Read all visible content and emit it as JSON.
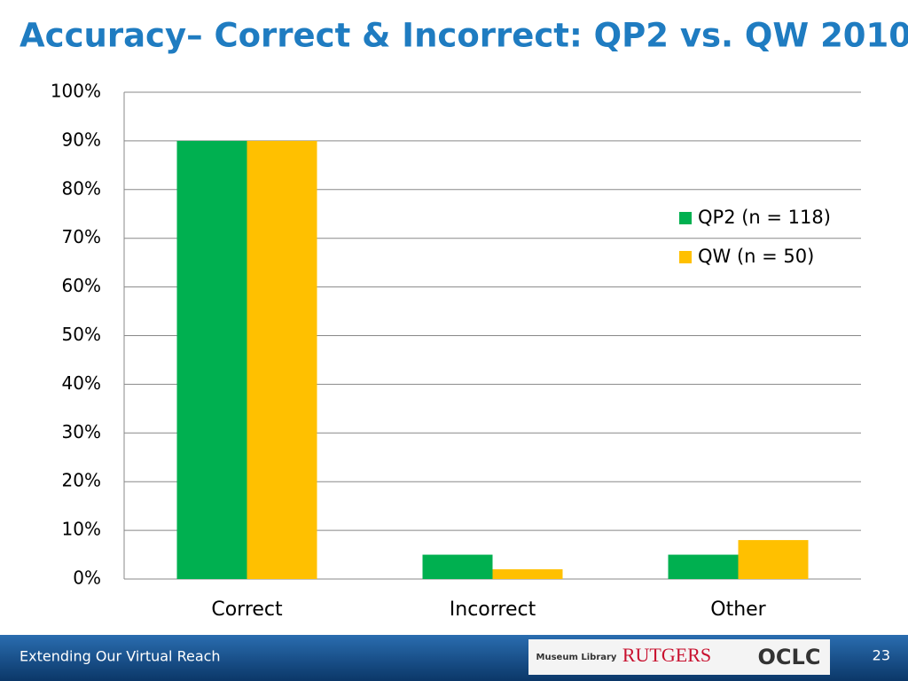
{
  "chart_data": {
    "type": "bar",
    "title": "Accuracy– Correct & Incorrect: QP2 vs. QW 2010",
    "categories": [
      "Correct",
      "Incorrect",
      "Other"
    ],
    "series": [
      {
        "name": "QP2 (n = 118)",
        "color": "#00b050",
        "values": [
          90,
          5,
          5
        ]
      },
      {
        "name": "QW (n = 50)",
        "color": "#ffc000",
        "values": [
          90,
          2,
          8
        ]
      }
    ],
    "ylim": [
      0,
      100
    ],
    "yticks": [
      {
        "value": 0,
        "label": "0%"
      },
      {
        "value": 10,
        "label": "10%"
      },
      {
        "value": 20,
        "label": "20%"
      },
      {
        "value": 30,
        "label": "30%"
      },
      {
        "value": 40,
        "label": "40%"
      },
      {
        "value": 50,
        "label": "50%"
      },
      {
        "value": 60,
        "label": "60%"
      },
      {
        "value": 70,
        "label": "70%"
      },
      {
        "value": 80,
        "label": "80%"
      },
      {
        "value": 90,
        "label": "90%"
      },
      {
        "value": 100,
        "label": "100%"
      }
    ],
    "grid": true,
    "legend": "right"
  },
  "footer": {
    "text": "Extending Our Virtual Reach",
    "page_number": "23",
    "logos": [
      "Museum Library",
      "RUTGERS",
      "OCLC"
    ]
  }
}
